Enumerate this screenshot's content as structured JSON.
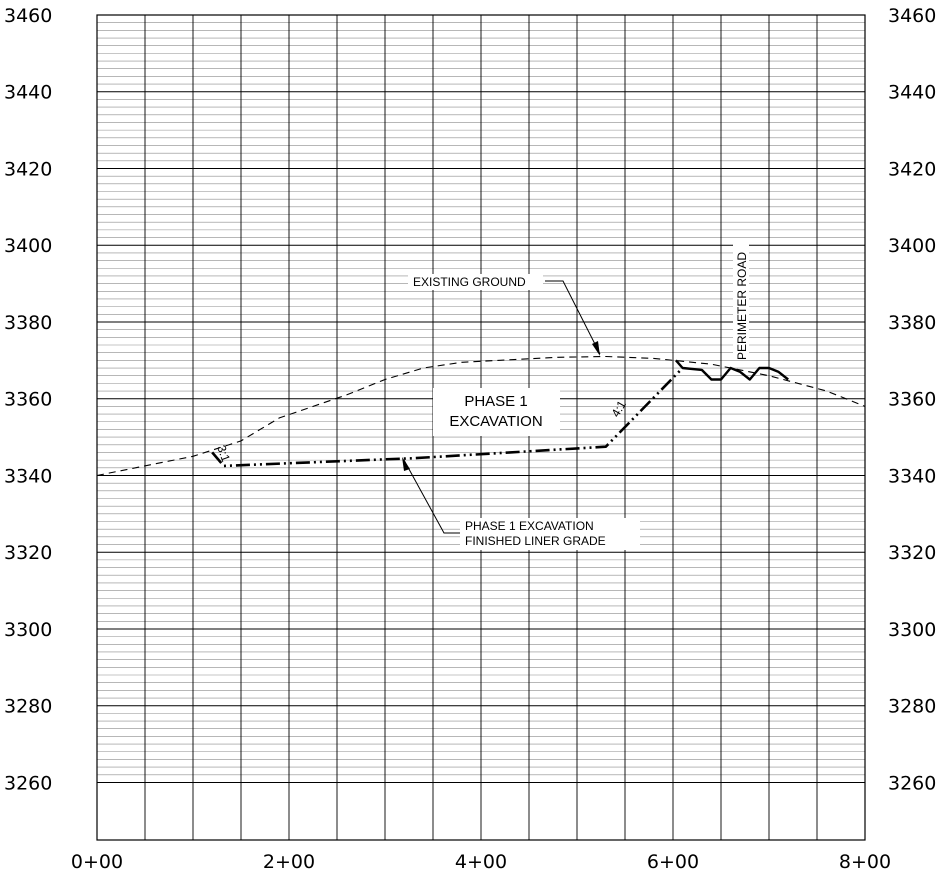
{
  "chart_data": {
    "type": "line",
    "title": "",
    "xlabel": "",
    "ylabel": "",
    "xlim": [
      0,
      800
    ],
    "ylim": [
      3245,
      3460
    ],
    "x_ticks": [
      {
        "value": 0,
        "label": "0+00"
      },
      {
        "value": 200,
        "label": "2+00"
      },
      {
        "value": 400,
        "label": "4+00"
      },
      {
        "value": 600,
        "label": "6+00"
      },
      {
        "value": 800,
        "label": "8+00"
      }
    ],
    "y_ticks": [
      {
        "value": 3460,
        "label": "3460"
      },
      {
        "value": 3440,
        "label": "3440"
      },
      {
        "value": 3420,
        "label": "3420"
      },
      {
        "value": 3400,
        "label": "3400"
      },
      {
        "value": 3380,
        "label": "3380"
      },
      {
        "value": 3360,
        "label": "3360"
      },
      {
        "value": 3340,
        "label": "3340"
      },
      {
        "value": 3320,
        "label": "3320"
      },
      {
        "value": 3300,
        "label": "3300"
      },
      {
        "value": 3280,
        "label": "3280"
      },
      {
        "value": 3260,
        "label": "3260"
      }
    ],
    "grid": true,
    "series": [
      {
        "name": "EXISTING GROUND",
        "style": "dashed",
        "x": [
          0,
          40,
          100,
          150,
          190,
          260,
          300,
          340,
          380,
          420,
          480,
          530,
          580,
          640,
          700,
          760,
          800
        ],
        "y": [
          3340,
          3342,
          3345,
          3349,
          3355,
          3361,
          3365,
          3368,
          3369.5,
          3370,
          3370.8,
          3371,
          3370.5,
          3369,
          3366,
          3362,
          3358
        ]
      },
      {
        "name": "PHASE 1 EXCAVATION FINISHED LINER GRADE",
        "style": "dash-dot-dot",
        "x": [
          120,
          132,
          330,
          530,
          610
        ],
        "y": [
          3346,
          3342.5,
          3344.5,
          3347.5,
          3368
        ]
      },
      {
        "name": "PERIMETER ROAD",
        "style": "solid",
        "x": [
          603,
          610,
          630,
          640,
          650,
          660,
          670,
          680,
          690,
          700,
          710,
          720
        ],
        "y": [
          3370,
          3368,
          3367.5,
          3365,
          3365,
          3368,
          3367,
          3365,
          3368,
          3368,
          3367,
          3365
        ]
      }
    ],
    "annotations": {
      "existing_ground": "EXISTING GROUND",
      "perimeter_road": "PERIMETER ROAD",
      "phase1_line1": "PHASE 1",
      "phase1_line2": "EXCAVATION",
      "liner_line1": "PHASE 1  EXCAVATION",
      "liner_line2": "FINISHED  LINER  GRADE",
      "slope_left": "3:1",
      "slope_right": "4:1"
    }
  }
}
